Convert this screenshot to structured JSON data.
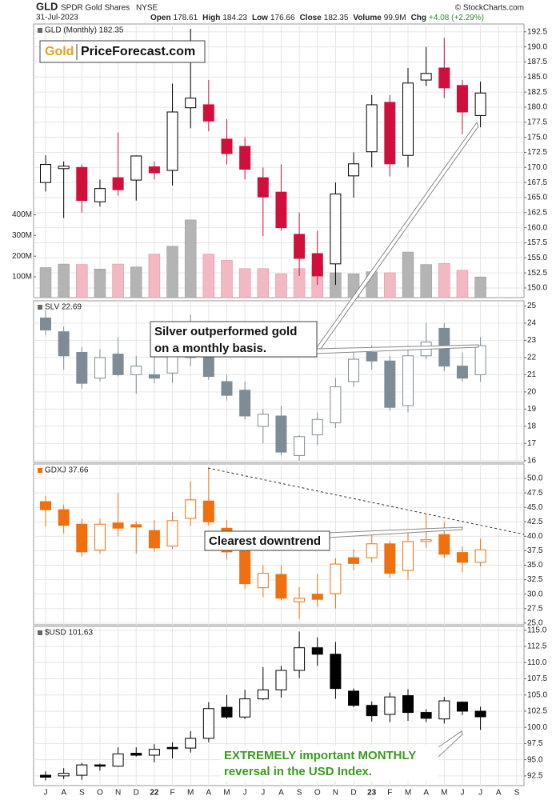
{
  "header": {
    "symbol": "GLD",
    "name": "SPDR Gold Shares",
    "exchange": "NYSE",
    "date": "31-Jul-2023",
    "quote": [
      {
        "label": "Open",
        "value": 178.61
      },
      {
        "label": "High",
        "value": 184.23
      },
      {
        "label": "Low",
        "value": 176.66
      },
      {
        "label": "Close",
        "value": 182.35
      },
      {
        "label": "Volume",
        "value": "99.9M"
      },
      {
        "label": "Chg",
        "value": "+4.08 (+2.29%)"
      }
    ],
    "copyright": "© StockCharts.com"
  },
  "chart_data": [
    {
      "type": "candlestick",
      "title": "GLD (Monthly) 182.35",
      "up_color": "#000000",
      "down_color": "#d0103a",
      "logo": {
        "brand": "Gold",
        "site": "PriceForecast.com"
      },
      "ylim": [
        148.4,
        193.8
      ],
      "yticks": [
        {
          "value": 150,
          "label": "150.0"
        },
        152.5,
        {
          "value": 155,
          "label": "155.0"
        },
        157.5,
        {
          "value": 160,
          "label": "160.0"
        },
        162.5,
        {
          "value": 165,
          "label": "165.0"
        },
        167.5,
        {
          "value": 170,
          "label": "170.0"
        },
        172.5,
        {
          "value": 175,
          "label": "175.0"
        },
        177.5,
        {
          "value": 180,
          "label": "180.0"
        },
        182.5,
        {
          "value": 185,
          "label": "185.0"
        },
        187.5,
        {
          "value": 190,
          "label": "190.0"
        },
        192.5
      ],
      "open": [
        167.5,
        169.8,
        170.0,
        164.3,
        168.3,
        167.9,
        170.1,
        169.5,
        179.9,
        180.4,
        174.7,
        173.5,
        168.3,
        165.9,
        158.9,
        155.7,
        154.0,
        168.6,
        172.6,
        180.8,
        172.0,
        184.5,
        186.5,
        183.6,
        178.61,
        null,
        null
      ],
      "high": [
        172.0,
        171.0,
        170.5,
        168.0,
        175.8,
        172.0,
        171.0,
        183.9,
        193.0,
        184.5,
        178.0,
        175.0,
        170.0,
        170.5,
        162.5,
        159.5,
        167.5,
        172.5,
        182.0,
        182.0,
        186.5,
        190.0,
        191.5,
        184.5,
        184.23,
        null,
        null
      ],
      "low": [
        166.0,
        161.6,
        162.5,
        163.5,
        165.3,
        164.5,
        168.0,
        167.0,
        176.5,
        176.0,
        170.5,
        168.0,
        158.6,
        159.5,
        152.0,
        150.5,
        150.5,
        165.0,
        170.0,
        168.5,
        170.0,
        183.5,
        181.5,
        175.5,
        176.66,
        null,
        null
      ],
      "close": [
        170.5,
        170.2,
        164.5,
        166.5,
        166.3,
        171.9,
        169.1,
        179.2,
        181.5,
        177.7,
        172.3,
        169.7,
        165.1,
        160.0,
        154.9,
        152.0,
        165.6,
        170.6,
        180.4,
        170.6,
        184.0,
        185.6,
        183.2,
        179.2,
        182.35,
        null,
        null
      ],
      "volume": {
        "up_color": "#b4b4b4",
        "down_color": "#f2b8c4",
        "ylim": [
          0,
          1320
        ],
        "yticks": [
          {
            "value": 100,
            "label": "100M"
          },
          {
            "value": 200,
            "label": "200M"
          },
          {
            "value": 300,
            "label": "300M"
          },
          {
            "value": 400,
            "label": "400M"
          }
        ],
        "values": [
          145,
          162,
          160,
          138,
          162,
          148,
          210,
          248,
          375,
          210,
          180,
          140,
          140,
          115,
          140,
          155,
          120,
          115,
          125,
          120,
          220,
          160,
          165,
          132,
          99.9,
          null,
          null
        ]
      }
    },
    {
      "type": "candlestick",
      "title": "SLV 22.69",
      "up_color": "#7f8c96",
      "down_color": "#7f8c96",
      "annotation": [
        "Silver outperformed gold",
        "on a monthly basis."
      ],
      "ylim": [
        15.9,
        25.3
      ],
      "yticks": [
        16,
        17,
        18,
        19,
        20,
        21,
        22,
        23,
        24,
        25
      ],
      "open": [
        24.3,
        23.5,
        22.3,
        20.8,
        22.2,
        21.0,
        21.0,
        21.1,
        22.5,
        22.1,
        20.6,
        20.1,
        18.0,
        18.6,
        16.3,
        17.5,
        18.2,
        20.6,
        22.3,
        21.8,
        19.2,
        22.1,
        23.7,
        21.5,
        21.0,
        null,
        null
      ],
      "high": [
        24.8,
        23.8,
        22.6,
        22.5,
        23.2,
        22.1,
        22.7,
        22.5,
        24.5,
        23.0,
        21.0,
        20.6,
        19.0,
        19.2,
        17.5,
        18.8,
        20.8,
        22.3,
        22.7,
        22.1,
        22.7,
        24.0,
        24.0,
        22.3,
        23.2,
        null,
        null
      ],
      "low": [
        23.3,
        21.3,
        20.2,
        20.6,
        20.9,
        19.9,
        20.5,
        20.5,
        21.5,
        20.7,
        19.5,
        18.4,
        17.0,
        16.3,
        16.0,
        16.9,
        17.9,
        20.3,
        21.3,
        18.9,
        18.8,
        21.9,
        21.2,
        20.6,
        20.6,
        null,
        null
      ],
      "close": [
        23.6,
        22.1,
        20.5,
        22.0,
        21.0,
        21.5,
        20.8,
        22.1,
        22.0,
        20.9,
        19.8,
        18.6,
        18.7,
        16.5,
        17.4,
        18.4,
        20.3,
        21.9,
        21.8,
        19.1,
        22.1,
        22.9,
        21.5,
        20.8,
        22.69,
        null,
        null
      ]
    },
    {
      "type": "candlestick",
      "title": "GDXJ 37.66",
      "up_color": "#f07010",
      "down_color": "#f07010",
      "annotation": [
        "Clearest downtrend"
      ],
      "ylim": [
        24.7,
        52.5
      ],
      "yticks": [
        {
          "value": 25,
          "label": "25.0"
        },
        27.5,
        {
          "value": 30,
          "label": "30.0"
        },
        32.5,
        {
          "value": 35,
          "label": "35.0"
        },
        37.5,
        {
          "value": 40,
          "label": "40.0"
        },
        42.5,
        {
          "value": 45,
          "label": "45.0"
        },
        47.5,
        {
          "value": 50,
          "label": "50.0"
        }
      ],
      "open": [
        46.0,
        44.6,
        42.1,
        37.6,
        42.3,
        42.0,
        41.0,
        38.3,
        43.1,
        46.1,
        41.4,
        37.6,
        31.1,
        33.4,
        28.7,
        30.0,
        30.1,
        36.3,
        36.3,
        38.7,
        34.1,
        39.1,
        40.3,
        37.2,
        35.5,
        null,
        null
      ],
      "high": [
        47.0,
        45.5,
        43.0,
        43.0,
        47.5,
        42.6,
        42.8,
        44.2,
        49.5,
        51.8,
        42.8,
        39.0,
        35.0,
        35.0,
        31.2,
        33.5,
        36.2,
        37.8,
        40.6,
        39.2,
        40.8,
        43.8,
        42.5,
        38.3,
        39.6,
        null,
        null
      ],
      "low": [
        41.7,
        40.5,
        36.5,
        37.0,
        40.0,
        37.0,
        37.3,
        37.8,
        41.8,
        41.8,
        36.0,
        30.9,
        29.5,
        29.0,
        25.7,
        27.8,
        27.5,
        34.1,
        35.5,
        32.8,
        32.5,
        38.0,
        36.2,
        33.8,
        34.8,
        null,
        null
      ],
      "close": [
        44.6,
        41.9,
        37.3,
        42.1,
        41.4,
        41.6,
        38.0,
        42.7,
        46.3,
        42.5,
        37.3,
        31.8,
        33.6,
        29.3,
        29.3,
        29.1,
        35.2,
        35.3,
        38.7,
        33.6,
        39.1,
        39.4,
        36.9,
        35.5,
        37.66,
        null,
        null
      ]
    },
    {
      "type": "candlestick",
      "title": "$USD 101.63",
      "up_color": "#000000",
      "down_color": "#000000",
      "annotation": [
        "EXTREMELY important MONTHLY",
        "reversal in the USD Index."
      ],
      "ylim": [
        91.0,
        115.6
      ],
      "yticks": [
        92.5,
        {
          "value": 95,
          "label": "95.0"
        },
        97.5,
        {
          "value": 100,
          "label": "100.0"
        },
        102.5,
        {
          "value": 105,
          "label": "105.0"
        },
        107.5,
        {
          "value": 110,
          "label": "110.0"
        },
        112.5,
        {
          "value": 115,
          "label": "115.0"
        }
      ],
      "categories": [
        "J",
        "A",
        "S",
        "O",
        "N",
        "D",
        "22",
        "F",
        "M",
        "A",
        "M",
        "J",
        "J",
        "A",
        "S",
        "O",
        "N",
        "D",
        "23",
        "F",
        "M",
        "A",
        "M",
        "J",
        "J",
        "A",
        "S"
      ],
      "open": [
        92.6,
        92.5,
        92.6,
        94.2,
        94.0,
        96.0,
        95.7,
        96.9,
        96.8,
        98.3,
        103.1,
        101.6,
        104.4,
        105.8,
        108.8,
        112.3,
        111.3,
        105.6,
        103.4,
        102.0,
        104.9,
        102.3,
        101.3,
        103.9,
        102.5,
        null,
        null
      ],
      "high": [
        93.2,
        93.7,
        94.5,
        94.4,
        96.9,
        96.9,
        97.4,
        97.7,
        99.4,
        103.9,
        105.0,
        105.8,
        109.3,
        109.5,
        114.8,
        113.9,
        113.2,
        106.0,
        104.0,
        105.4,
        105.9,
        102.8,
        104.7,
        104.0,
        103.2,
        null,
        null
      ],
      "low": [
        91.8,
        92.0,
        91.9,
        93.3,
        93.9,
        95.5,
        94.6,
        95.2,
        96.1,
        97.7,
        101.3,
        101.3,
        104.2,
        104.6,
        107.6,
        109.5,
        104.4,
        103.1,
        100.9,
        100.8,
        101.0,
        100.8,
        100.6,
        101.9,
        99.6,
        null,
        null
      ],
      "close": [
        92.3,
        92.9,
        94.2,
        94.0,
        95.9,
        95.7,
        96.6,
        96.7,
        98.3,
        102.9,
        101.6,
        104.4,
        105.8,
        108.8,
        112.3,
        111.3,
        106.0,
        103.4,
        101.8,
        104.7,
        102.3,
        101.4,
        104.1,
        102.5,
        101.63,
        null,
        null
      ]
    }
  ]
}
